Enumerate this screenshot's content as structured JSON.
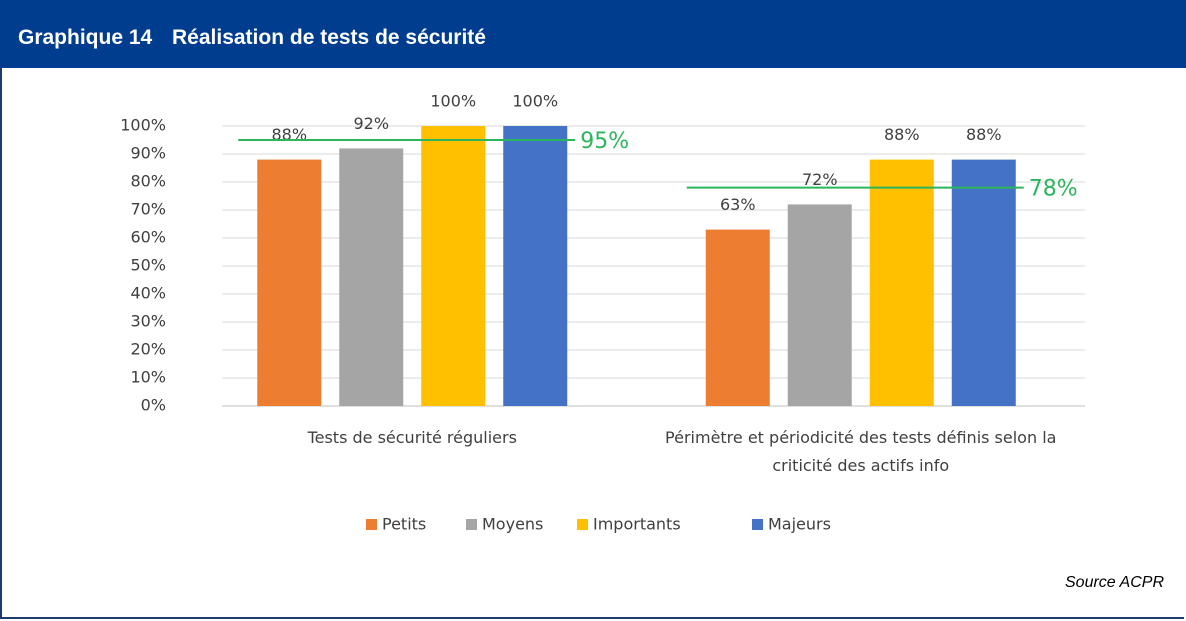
{
  "chart_data": {
    "type": "bar",
    "title": "Graphique 14",
    "subtitle": "Réalisation de tests de sécurité",
    "categories": [
      "Tests de sécurité réguliers",
      "Périmètre et périodicité des tests définis selon la criticité des actifs info"
    ],
    "series": [
      {
        "name": "Petits",
        "color": "#ed7d31",
        "values": [
          88,
          63
        ],
        "value_labels": [
          "88%",
          "63%"
        ]
      },
      {
        "name": "Moyens",
        "color": "#a5a5a5",
        "values": [
          92,
          72
        ],
        "value_labels": [
          "92%",
          "72%"
        ]
      },
      {
        "name": "Importants",
        "color": "#ffc000",
        "values": [
          100,
          88
        ],
        "value_labels": [
          "100%",
          "88%"
        ]
      },
      {
        "name": "Majeurs",
        "color": "#4472c4",
        "values": [
          100,
          88
        ],
        "value_labels": [
          "100%",
          "88%"
        ]
      }
    ],
    "reference_lines": [
      {
        "category": 0,
        "value": 95,
        "label": "95%"
      },
      {
        "category": 1,
        "value": 78,
        "label": "78%"
      }
    ],
    "reference_color": "#2db55d",
    "ylim": [
      0,
      100
    ],
    "yticks": [
      {
        "value": 0,
        "label": "0%"
      },
      {
        "value": 10,
        "label": "10%"
      },
      {
        "value": 20,
        "label": "20%"
      },
      {
        "value": 30,
        "label": "30%"
      },
      {
        "value": 40,
        "label": "40%"
      },
      {
        "value": 50,
        "label": "50%"
      },
      {
        "value": 60,
        "label": "60%"
      },
      {
        "value": 70,
        "label": "70%"
      },
      {
        "value": 80,
        "label": "80%"
      },
      {
        "value": 90,
        "label": "90%"
      },
      {
        "value": 100,
        "label": "100%"
      }
    ],
    "grid": true,
    "legend": "bottom",
    "source": "Source ACPR"
  }
}
